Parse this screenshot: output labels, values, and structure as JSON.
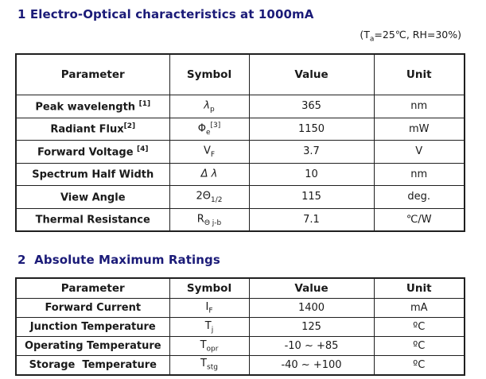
{
  "page": {
    "heading1": "1 Electro-Optical characteristics at 1000mA",
    "heading2": "2  Absolute Maximum Ratings",
    "condition": {
      "pre": "(T",
      "sub": "a",
      "post": "=25℃, RH=30%)"
    }
  },
  "colors": {
    "heading": "#1b1b78",
    "border": "#1f1f1f",
    "text": "#1a1a1a"
  },
  "table1": {
    "headers": [
      "Parameter",
      "Symbol",
      "Value",
      "Unit"
    ],
    "rows": [
      {
        "param": "Peak wavelength ",
        "param_sup": "[1]",
        "sym_base": "λ",
        "sym_sub": "p",
        "sym_sup": "",
        "value": "365",
        "unit": "nm"
      },
      {
        "param": "Radiant Flux",
        "param_sup": "[2]",
        "sym_base": "Φ",
        "sym_sub": "e",
        "sym_sup": "[3]",
        "value": "1150",
        "unit": "mW"
      },
      {
        "param": "Forward Voltage ",
        "param_sup": "[4]",
        "sym_base": "V",
        "sym_sub": "F",
        "sym_sup": "",
        "value": "3.7",
        "unit": "V"
      },
      {
        "param": "Spectrum Half Width",
        "param_sup": "",
        "sym_base": "Δ λ",
        "sym_sub": "",
        "sym_sup": "",
        "value": "10",
        "unit": "nm"
      },
      {
        "param": "View Angle",
        "param_sup": "",
        "sym_base": "2Θ",
        "sym_sub": "1/2",
        "sym_sup": "",
        "value": "115",
        "unit": "deg."
      },
      {
        "param": "Thermal Resistance",
        "param_sup": "",
        "sym_base": "R",
        "sym_sub": "Θ j-b",
        "sym_sup": "",
        "value": "7.1",
        "unit": "℃/W"
      }
    ]
  },
  "table2": {
    "headers": [
      "Parameter",
      "Symbol",
      "Value",
      "Unit"
    ],
    "rows": [
      {
        "param": "Forward Current",
        "sym_base": "I",
        "sym_sub": "F",
        "value": "1400",
        "unit": "mA"
      },
      {
        "param": "Junction Temperature",
        "sym_base": "T",
        "sym_sub": "j",
        "value": "125",
        "unit": "ºC"
      },
      {
        "param": "Operating Temperature",
        "sym_base": "T",
        "sym_sub": "opr",
        "value": "-10 ~ +85",
        "unit": "ºC"
      },
      {
        "param": "Storage  Temperature",
        "sym_base": "T",
        "sym_sub": "stg",
        "value": "-40 ~ +100",
        "unit": "ºC"
      }
    ]
  }
}
